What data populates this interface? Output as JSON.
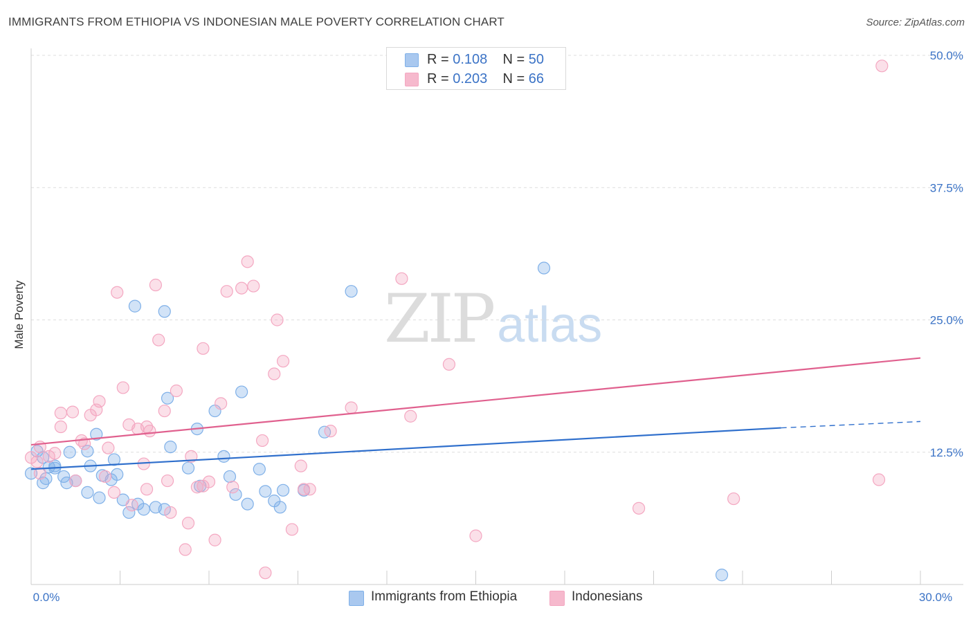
{
  "title": "IMMIGRANTS FROM ETHIOPIA VS INDONESIAN MALE POVERTY CORRELATION CHART",
  "source": "Source: ZipAtlas.com",
  "watermark": {
    "zip": "ZIP",
    "atlas": "atlas"
  },
  "legend": {
    "rows": [
      {
        "r_label": "R = ",
        "r_value": "0.108",
        "n_label": "N = ",
        "n_value": "50",
        "color": "#a9c8ef"
      },
      {
        "r_label": "R = ",
        "r_value": "0.203",
        "n_label": "N = ",
        "n_value": "66",
        "color": "#f6b9cd"
      }
    ]
  },
  "chart_data": {
    "type": "scatter",
    "title": "IMMIGRANTS FROM ETHIOPIA VS INDONESIAN MALE POVERTY CORRELATION CHART",
    "xlabel": "",
    "ylabel": "Male Poverty",
    "xlim": [
      0,
      30
    ],
    "ylim": [
      0,
      50
    ],
    "x_tick_labels": [
      "0.0%",
      "30.0%"
    ],
    "y_tick_values": [
      12.5,
      25.0,
      37.5,
      50.0
    ],
    "y_tick_labels": [
      "12.5%",
      "25.0%",
      "37.5%",
      "50.0%"
    ],
    "grid": "horizontal dashed",
    "legend_position": "top-center",
    "series": [
      {
        "name": "Immigrants from Ethiopia",
        "color": "#7fb0e8",
        "line_color": "#2f6fcc",
        "trend": {
          "x0": 0,
          "y0": 10.9,
          "x1": 25.3,
          "y1": 14.8,
          "dash_to_x": 30,
          "dash_to_y": 15.4
        },
        "points": [
          [
            0.0,
            10.5
          ],
          [
            0.4,
            9.6
          ],
          [
            0.6,
            11.1
          ],
          [
            0.8,
            11.2
          ],
          [
            0.8,
            11.0
          ],
          [
            1.2,
            9.6
          ],
          [
            1.3,
            12.5
          ],
          [
            1.5,
            9.8
          ],
          [
            1.9,
            8.7
          ],
          [
            2.3,
            8.2
          ],
          [
            2.7,
            9.9
          ],
          [
            3.1,
            8.0
          ],
          [
            3.3,
            6.8
          ],
          [
            3.6,
            7.6
          ],
          [
            3.8,
            7.1
          ],
          [
            4.2,
            7.3
          ],
          [
            4.5,
            7.1
          ],
          [
            2.4,
            10.3
          ],
          [
            0.4,
            12.0
          ],
          [
            2.2,
            14.2
          ],
          [
            2.8,
            11.8
          ],
          [
            3.5,
            26.3
          ],
          [
            4.5,
            25.8
          ],
          [
            4.6,
            17.6
          ],
          [
            4.7,
            13.0
          ],
          [
            5.3,
            11.0
          ],
          [
            5.6,
            14.7
          ],
          [
            5.7,
            9.3
          ],
          [
            6.2,
            16.4
          ],
          [
            6.5,
            12.1
          ],
          [
            6.7,
            10.2
          ],
          [
            6.9,
            8.5
          ],
          [
            7.1,
            18.2
          ],
          [
            7.3,
            7.6
          ],
          [
            7.7,
            10.9
          ],
          [
            7.9,
            8.8
          ],
          [
            8.2,
            7.9
          ],
          [
            8.4,
            7.3
          ],
          [
            8.5,
            8.9
          ],
          [
            9.2,
            8.9
          ],
          [
            9.9,
            14.4
          ],
          [
            10.8,
            27.7
          ],
          [
            17.3,
            29.9
          ],
          [
            23.3,
            0.9
          ],
          [
            0.2,
            12.6
          ],
          [
            1.9,
            12.6
          ],
          [
            2.0,
            11.2
          ],
          [
            1.1,
            10.2
          ],
          [
            0.5,
            10.0
          ],
          [
            2.9,
            10.4
          ]
        ]
      },
      {
        "name": "Indonesians",
        "color": "#f4a7c1",
        "line_color": "#e0608e",
        "trend": {
          "x0": 0,
          "y0": 13.2,
          "x1": 30,
          "y1": 21.4
        },
        "points": [
          [
            0.0,
            12.0
          ],
          [
            0.2,
            11.6
          ],
          [
            0.3,
            10.5
          ],
          [
            0.6,
            12.1
          ],
          [
            0.8,
            12.4
          ],
          [
            1.0,
            14.9
          ],
          [
            1.0,
            16.2
          ],
          [
            1.4,
            16.3
          ],
          [
            1.5,
            9.8
          ],
          [
            1.8,
            13.3
          ],
          [
            2.0,
            16.0
          ],
          [
            2.2,
            16.5
          ],
          [
            2.3,
            17.3
          ],
          [
            2.6,
            12.9
          ],
          [
            2.8,
            8.7
          ],
          [
            2.9,
            27.6
          ],
          [
            3.1,
            18.6
          ],
          [
            3.3,
            15.1
          ],
          [
            3.6,
            14.7
          ],
          [
            3.8,
            11.4
          ],
          [
            3.9,
            9.0
          ],
          [
            3.9,
            14.9
          ],
          [
            4.2,
            28.3
          ],
          [
            4.3,
            23.1
          ],
          [
            4.5,
            16.4
          ],
          [
            4.6,
            9.8
          ],
          [
            4.7,
            6.8
          ],
          [
            4.9,
            18.3
          ],
          [
            5.2,
            3.3
          ],
          [
            5.3,
            5.8
          ],
          [
            5.4,
            12.1
          ],
          [
            5.6,
            9.2
          ],
          [
            5.8,
            9.3
          ],
          [
            5.8,
            22.3
          ],
          [
            6.0,
            9.7
          ],
          [
            6.2,
            4.2
          ],
          [
            6.4,
            17.1
          ],
          [
            6.6,
            27.7
          ],
          [
            6.8,
            9.2
          ],
          [
            7.1,
            28.0
          ],
          [
            7.3,
            30.5
          ],
          [
            7.5,
            28.2
          ],
          [
            7.8,
            13.6
          ],
          [
            7.9,
            1.1
          ],
          [
            8.2,
            19.9
          ],
          [
            8.3,
            25.0
          ],
          [
            8.5,
            21.1
          ],
          [
            8.8,
            5.2
          ],
          [
            9.1,
            11.2
          ],
          [
            9.2,
            9.0
          ],
          [
            9.4,
            9.0
          ],
          [
            10.1,
            14.5
          ],
          [
            10.8,
            16.7
          ],
          [
            12.5,
            28.9
          ],
          [
            12.8,
            15.9
          ],
          [
            14.1,
            20.8
          ],
          [
            15.0,
            4.6
          ],
          [
            20.5,
            7.2
          ],
          [
            23.7,
            8.1
          ],
          [
            28.7,
            49.0
          ],
          [
            28.6,
            9.9
          ],
          [
            0.3,
            13.0
          ],
          [
            1.7,
            13.6
          ],
          [
            2.5,
            10.2
          ],
          [
            3.4,
            7.5
          ],
          [
            4.0,
            14.5
          ]
        ]
      }
    ]
  }
}
